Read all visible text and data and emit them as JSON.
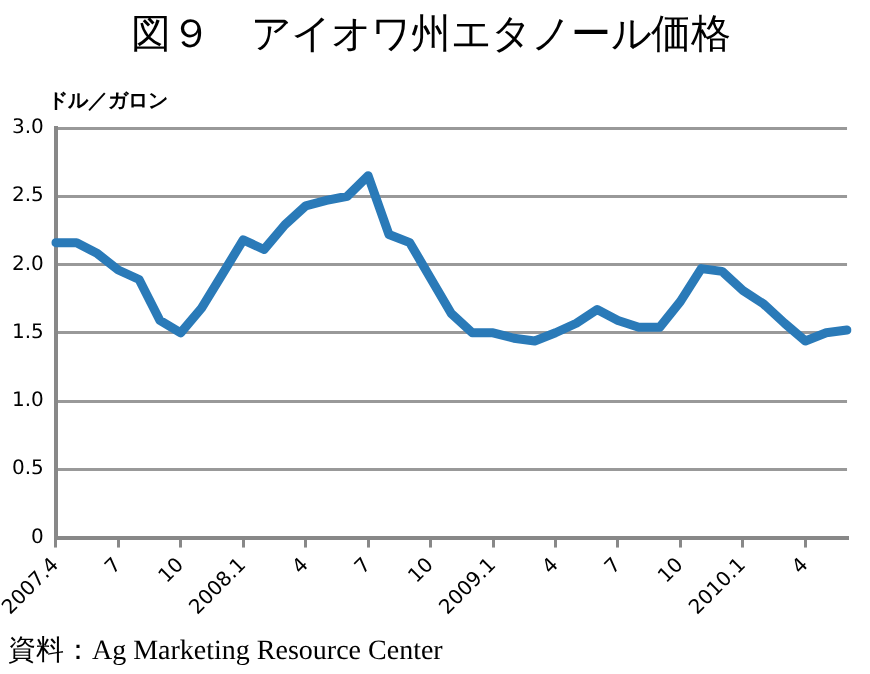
{
  "chart_data": {
    "type": "line",
    "title": "図９　アイオワ州エタノール価格",
    "ylabel": "ドル／ガロン",
    "annotations": [
      "資料：Ag Marketing Resource Center"
    ],
    "categories": [
      "2007.4",
      null,
      null,
      "7",
      null,
      null,
      "10",
      null,
      null,
      "2008.1",
      null,
      null,
      "4",
      null,
      null,
      "7",
      null,
      null,
      "10",
      null,
      null,
      "2009.1",
      null,
      null,
      "4",
      null,
      null,
      "7",
      null,
      null,
      "10",
      null,
      null,
      "2010.1",
      null,
      null,
      "4",
      null,
      null
    ],
    "series": [
      {
        "color": "#2a7ab8",
        "values": [
          2.16,
          2.16,
          2.08,
          1.96,
          1.89,
          1.59,
          1.5,
          1.68,
          1.93,
          2.18,
          2.11,
          2.29,
          2.43,
          2.47,
          2.5,
          2.65,
          2.22,
          2.16,
          1.9,
          1.64,
          1.5,
          1.5,
          1.46,
          1.44,
          1.5,
          1.57,
          1.67,
          1.59,
          1.54,
          1.54,
          1.73,
          1.97,
          1.95,
          1.81,
          1.71,
          1.57,
          1.44,
          1.5,
          1.52
        ]
      }
    ],
    "ylim": [
      0,
      3.0
    ],
    "yticks": [
      0,
      0.5,
      {
        "value": 1,
        "label": "1.0"
      },
      1.5,
      {
        "value": 2,
        "label": "2.0"
      },
      2.5,
      {
        "value": 3,
        "label": "3.0"
      }
    ],
    "grid": "y",
    "legend": false,
    "marker": "none",
    "line_style": "solid"
  }
}
